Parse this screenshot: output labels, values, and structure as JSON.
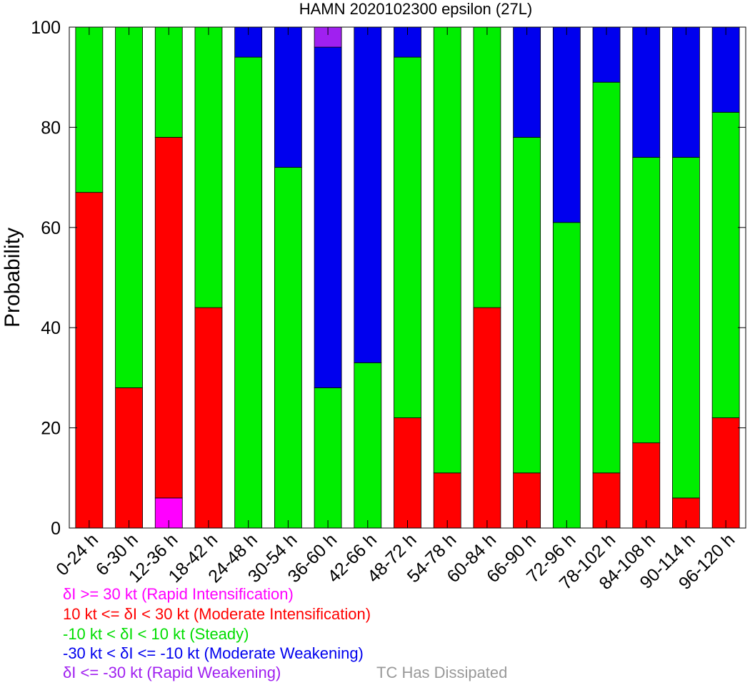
{
  "chart_data": {
    "type": "bar",
    "stacked": true,
    "title": "HAMN 2020102300 epsilon (27L)",
    "xlabel": "",
    "ylabel": "Probability",
    "ylim": [
      0,
      100
    ],
    "yticks": [
      0,
      20,
      40,
      60,
      80,
      100
    ],
    "grid": false,
    "categories": [
      "0-24 h",
      "6-30 h",
      "12-36 h",
      "18-42 h",
      "24-48 h",
      "30-54 h",
      "36-60 h",
      "42-66 h",
      "48-72 h",
      "54-78 h",
      "60-84 h",
      "66-90 h",
      "72-96 h",
      "78-102 h",
      "84-108 h",
      "90-114 h",
      "96-120 h"
    ],
    "series": [
      {
        "name": "δI >= 30 kt (Rapid Intensification)",
        "color": "#ff00ff",
        "values": [
          0,
          0,
          6,
          0,
          0,
          0,
          0,
          0,
          0,
          0,
          0,
          0,
          0,
          0,
          0,
          0,
          0
        ]
      },
      {
        "name": "10 kt <= δI < 30 kt (Moderate Intensification)",
        "color": "#ff0000",
        "values": [
          67,
          28,
          72,
          44,
          0,
          0,
          0,
          0,
          22,
          11,
          44,
          11,
          0,
          11,
          17,
          6,
          22
        ]
      },
      {
        "name": "-10 kt < δI < 10 kt (Steady)",
        "color": "#00ee00",
        "values": [
          33,
          72,
          22,
          56,
          94,
          72,
          28,
          33,
          72,
          89,
          56,
          67,
          61,
          78,
          57,
          68,
          61
        ]
      },
      {
        "name": "-30 kt < δI <= -10 kt (Moderate Weakening)",
        "color": "#0000ee",
        "values": [
          0,
          0,
          0,
          0,
          6,
          28,
          68,
          67,
          6,
          0,
          0,
          22,
          39,
          11,
          26,
          26,
          17
        ]
      },
      {
        "name": "δI <= -30 kt (Rapid Weakening)",
        "color": "#a020f0",
        "values": [
          0,
          0,
          0,
          0,
          0,
          0,
          4,
          0,
          0,
          0,
          0,
          0,
          0,
          0,
          0,
          0,
          0
        ]
      },
      {
        "name": "TC Has Dissipated",
        "color": "#999999",
        "values": [
          0,
          0,
          0,
          0,
          0,
          0,
          0,
          0,
          0,
          0,
          0,
          0,
          0,
          0,
          0,
          0,
          0
        ]
      }
    ],
    "legend": {
      "placement": "bottom-left",
      "entries": [
        {
          "text": "δI >= 30 kt (Rapid Intensification)",
          "color": "#ff00ff"
        },
        {
          "text": "10 kt <= δI < 30 kt (Moderate Intensification)",
          "color": "#ff0000"
        },
        {
          "text": "-10 kt < δI < 10 kt (Steady)",
          "color": "#00dd00"
        },
        {
          "text": "-30 kt < δI <= -10 kt (Moderate Weakening)",
          "color": "#0000ee"
        },
        {
          "text": "δI <= -30 kt (Rapid Weakening)",
          "color": "#a020f0"
        },
        {
          "text": "TC Has Dissipated",
          "color": "#999999"
        }
      ]
    }
  }
}
